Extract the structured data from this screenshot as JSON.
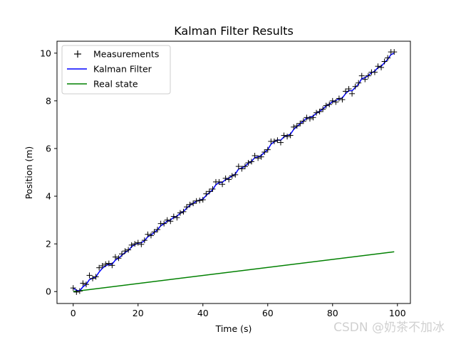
{
  "chart_data": {
    "type": "line",
    "title": "Kalman Filter Results",
    "xlabel": "Time (s)",
    "ylabel": "Position (m)",
    "xlim": [
      -5,
      104
    ],
    "ylim": [
      -0.5,
      10.5
    ],
    "xticks": [
      0,
      20,
      40,
      60,
      80,
      100
    ],
    "yticks": [
      0,
      2,
      4,
      6,
      8,
      10
    ],
    "grid": false,
    "legend_position": "top-left",
    "colors": {
      "measurements": "#000000",
      "kalman": "#0000ff",
      "real": "#008000"
    },
    "series": [
      {
        "name": "Measurements",
        "type": "scatter",
        "marker": "+",
        "x": [
          0,
          1,
          2,
          3,
          4,
          5,
          6,
          7,
          8,
          9,
          10,
          11,
          12,
          13,
          14,
          15,
          16,
          17,
          18,
          19,
          20,
          21,
          22,
          23,
          24,
          25,
          26,
          27,
          28,
          29,
          30,
          31,
          32,
          33,
          34,
          35,
          36,
          37,
          38,
          39,
          40,
          41,
          42,
          43,
          44,
          45,
          46,
          47,
          48,
          49,
          50,
          51,
          52,
          53,
          54,
          55,
          56,
          57,
          58,
          59,
          60,
          61,
          62,
          63,
          64,
          65,
          66,
          67,
          68,
          69,
          70,
          71,
          72,
          73,
          74,
          75,
          76,
          77,
          78,
          79,
          80,
          81,
          82,
          83,
          84,
          85,
          86,
          87,
          88,
          89,
          90,
          91,
          92,
          93,
          94,
          95,
          96,
          97,
          98,
          99
        ],
        "y": [
          0.15,
          -0.02,
          0.02,
          0.35,
          0.3,
          0.68,
          0.55,
          0.62,
          1.0,
          1.08,
          1.15,
          1.18,
          1.1,
          1.45,
          1.4,
          1.58,
          1.7,
          1.75,
          1.95,
          2.0,
          2.05,
          1.98,
          2.15,
          2.4,
          2.35,
          2.5,
          2.6,
          2.85,
          2.85,
          3.0,
          2.95,
          3.15,
          3.1,
          3.3,
          3.35,
          3.55,
          3.65,
          3.7,
          3.8,
          3.82,
          3.85,
          4.1,
          4.2,
          4.3,
          4.6,
          4.6,
          4.5,
          4.75,
          4.7,
          4.85,
          4.9,
          5.25,
          5.15,
          5.25,
          5.4,
          5.45,
          5.7,
          5.6,
          5.65,
          5.85,
          5.95,
          6.3,
          6.3,
          6.35,
          6.25,
          6.55,
          6.5,
          6.55,
          6.9,
          6.95,
          7.05,
          7.15,
          7.3,
          7.25,
          7.3,
          7.5,
          7.55,
          7.65,
          7.8,
          7.85,
          8.0,
          7.95,
          8.1,
          8.05,
          8.4,
          8.5,
          8.3,
          8.6,
          8.75,
          9.05,
          8.9,
          9.05,
          9.2,
          9.2,
          9.45,
          9.4,
          9.65,
          9.8,
          10.05,
          10.05
        ]
      },
      {
        "name": "Kalman Filter",
        "type": "line",
        "x": [
          0,
          1,
          2,
          3,
          4,
          5,
          6,
          7,
          8,
          9,
          10,
          11,
          12,
          13,
          14,
          15,
          16,
          17,
          18,
          19,
          20,
          21,
          22,
          23,
          24,
          25,
          26,
          27,
          28,
          29,
          30,
          31,
          32,
          33,
          34,
          35,
          36,
          37,
          38,
          39,
          40,
          41,
          42,
          43,
          44,
          45,
          46,
          47,
          48,
          49,
          50,
          51,
          52,
          53,
          54,
          55,
          56,
          57,
          58,
          59,
          60,
          61,
          62,
          63,
          64,
          65,
          66,
          67,
          68,
          69,
          70,
          71,
          72,
          73,
          74,
          75,
          76,
          77,
          78,
          79,
          80,
          81,
          82,
          83,
          84,
          85,
          86,
          87,
          88,
          89,
          90,
          91,
          92,
          93,
          94,
          95,
          96,
          97,
          98,
          99
        ],
        "y": [
          0.15,
          0.05,
          0.03,
          0.2,
          0.3,
          0.5,
          0.56,
          0.62,
          0.82,
          0.98,
          1.08,
          1.14,
          1.15,
          1.32,
          1.4,
          1.52,
          1.64,
          1.72,
          1.88,
          1.97,
          2.03,
          2.05,
          2.13,
          2.3,
          2.37,
          2.48,
          2.59,
          2.76,
          2.84,
          2.96,
          3.0,
          3.12,
          3.16,
          3.28,
          3.36,
          3.5,
          3.62,
          3.7,
          3.79,
          3.84,
          3.88,
          4.03,
          4.15,
          4.27,
          4.48,
          4.57,
          4.58,
          4.7,
          4.75,
          4.85,
          4.93,
          5.14,
          5.18,
          5.26,
          5.38,
          5.46,
          5.62,
          5.65,
          5.71,
          5.84,
          5.95,
          6.18,
          6.28,
          6.36,
          6.35,
          6.49,
          6.54,
          6.6,
          6.8,
          6.92,
          7.04,
          7.15,
          7.28,
          7.31,
          7.36,
          7.48,
          7.56,
          7.66,
          7.78,
          7.86,
          7.97,
          8.01,
          8.09,
          8.12,
          8.3,
          8.43,
          8.42,
          8.56,
          8.7,
          8.93,
          8.97,
          9.06,
          9.18,
          9.24,
          9.4,
          9.45,
          9.6,
          9.74,
          9.94,
          10.0
        ]
      },
      {
        "name": "Real state",
        "type": "line",
        "x": [
          0,
          99
        ],
        "y": [
          0.0,
          1.67
        ]
      }
    ]
  },
  "watermark": "CSDN @奶茶不加冰"
}
